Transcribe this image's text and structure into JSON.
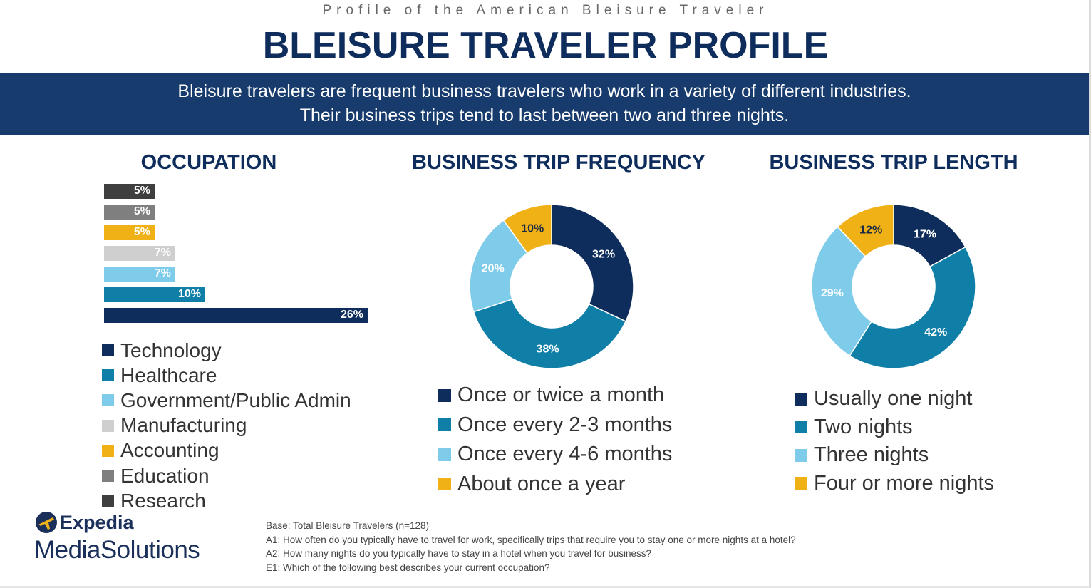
{
  "header": {
    "kicker": "Profile of the American Bleisure Traveler",
    "title": "BLEISURE TRAVELER PROFILE",
    "banner_line1": "Bleisure travelers are frequent business travelers who work in a variety of different industries.",
    "banner_line2": "Their business trips tend to last between two and three nights."
  },
  "chart_data": [
    {
      "type": "bar",
      "orientation": "horizontal",
      "title": "OCCUPATION",
      "categories": [
        "Research",
        "Education",
        "Accounting",
        "Manufacturing",
        "Government/Public Admin",
        "Healthcare",
        "Technology"
      ],
      "values": [
        5,
        5,
        5,
        7,
        7,
        10,
        26
      ],
      "labels": [
        "5%",
        "5%",
        "5%",
        "7%",
        "7%",
        "10%",
        "26%"
      ],
      "colors": [
        "#3f3f3f",
        "#7f7f7f",
        "#f0b117",
        "#cfcfcf",
        "#7fcbea",
        "#0f7fa8",
        "#0f2d5c"
      ],
      "legend": [
        {
          "label": "Technology",
          "color": "#0f2d5c"
        },
        {
          "label": "Healthcare",
          "color": "#0f7fa8"
        },
        {
          "label": "Government/Public Admin",
          "color": "#7fcbea"
        },
        {
          "label": "Manufacturing",
          "color": "#cfcfcf"
        },
        {
          "label": "Accounting",
          "color": "#f0b117"
        },
        {
          "label": "Education",
          "color": "#7f7f7f"
        },
        {
          "label": "Research",
          "color": "#3f3f3f"
        }
      ]
    },
    {
      "type": "pie",
      "style": "donut",
      "title": "BUSINESS TRIP FREQUENCY",
      "categories": [
        "Once or twice a month",
        "Once every 2-3 months",
        "Once every 4-6 months",
        "About once a year"
      ],
      "values": [
        32,
        38,
        20,
        10
      ],
      "labels": [
        "32%",
        "38%",
        "20%",
        "10%"
      ],
      "colors": [
        "#0f2d5c",
        "#0f7fa8",
        "#7fcbea",
        "#f0b117"
      ],
      "label_colors": [
        "#ffffff",
        "#ffffff",
        "#ffffff",
        "#1b2a44"
      ]
    },
    {
      "type": "pie",
      "style": "donut",
      "title": "BUSINESS TRIP LENGTH",
      "categories": [
        "Usually one night",
        "Two nights",
        "Three nights",
        "Four or more nights"
      ],
      "values": [
        17,
        42,
        29,
        12
      ],
      "labels": [
        "17%",
        "42%",
        "29%",
        "12%"
      ],
      "colors": [
        "#0f2d5c",
        "#0f7fa8",
        "#7fcbea",
        "#f0b117"
      ],
      "label_colors": [
        "#ffffff",
        "#ffffff",
        "#ffffff",
        "#1b2a44"
      ]
    }
  ],
  "footnotes": [
    "Base: Total Bleisure Travelers (n=128)",
    "A1: How often do you typically have to travel for work, specifically trips that require you to stay one or more nights at a hotel?",
    "A2: How many nights do you typically have to stay in a hotel when you travel for business?",
    "E1: Which of the following best describes your current occupation?"
  ],
  "logo": {
    "top": "Expedia",
    "bottom": "MediaSolutions",
    "icon": "plane-globe-icon"
  }
}
